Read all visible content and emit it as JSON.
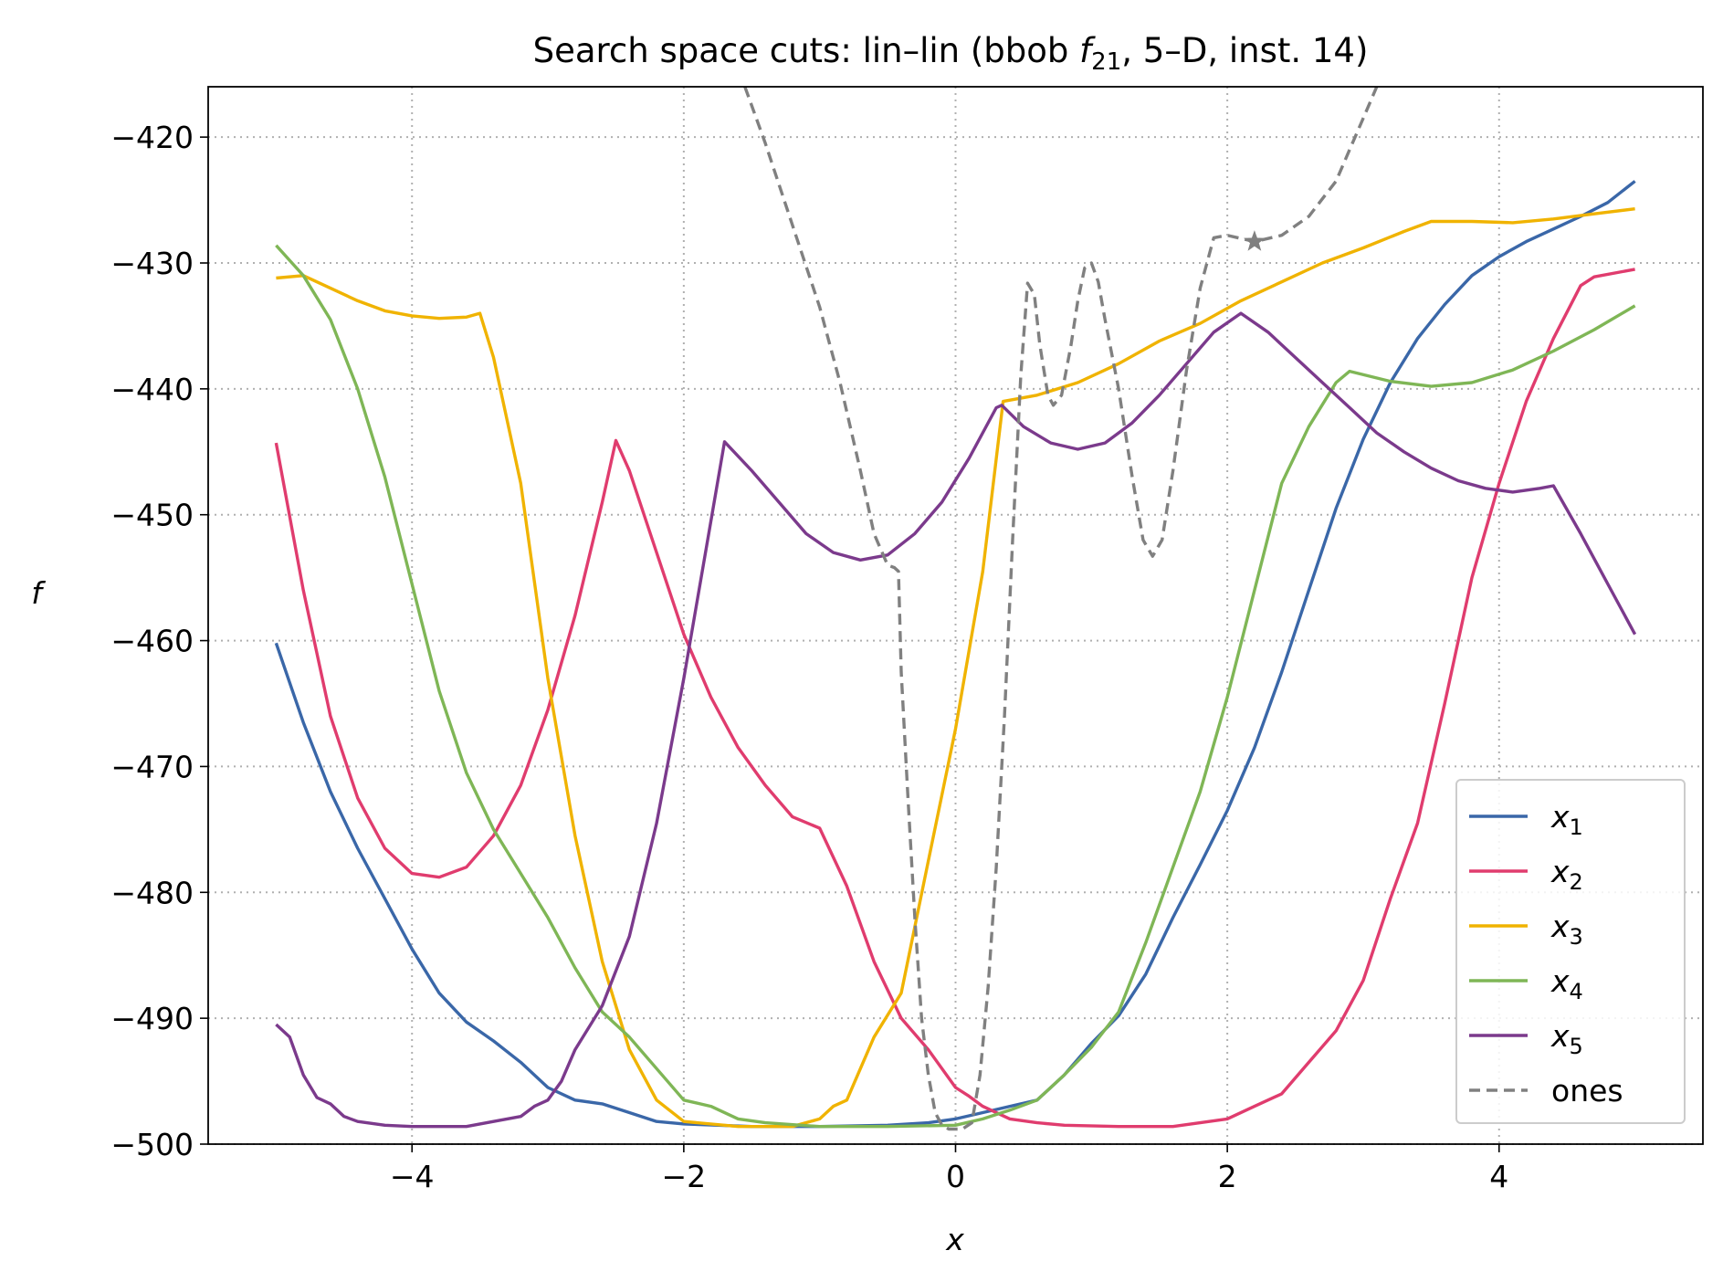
{
  "chart_data": {
    "type": "line",
    "title_prefix": "Search space cuts: lin–lin (bbob ",
    "title_func": "f",
    "title_func_sub": "21",
    "title_suffix": ", 5–D, inst. 14)",
    "xlabel": "x",
    "ylabel": "f",
    "xlim": [
      -5.5,
      5.5
    ],
    "ylim": [
      -500,
      -416
    ],
    "xticks": [
      -4,
      -2,
      0,
      2,
      4
    ],
    "xtick_labels": [
      "−4",
      "−2",
      "0",
      "2",
      "4"
    ],
    "yticks": [
      -420,
      -430,
      -440,
      -450,
      -460,
      -470,
      -480,
      -490,
      -500
    ],
    "ytick_labels": [
      "−420",
      "−430",
      "−440",
      "−450",
      "−460",
      "−470",
      "−480",
      "−490",
      "−500"
    ],
    "grid": true,
    "legend_position": "lower-right",
    "series": [
      {
        "name": "x",
        "sub": "1",
        "color": "#3a67a8",
        "dash": false,
        "points": [
          [
            -5,
            -460.2
          ],
          [
            -4.8,
            -466.5
          ],
          [
            -4.6,
            -472
          ],
          [
            -4.4,
            -476.5
          ],
          [
            -4.2,
            -480.5
          ],
          [
            -4,
            -484.5
          ],
          [
            -3.8,
            -488
          ],
          [
            -3.6,
            -490.3
          ],
          [
            -3.4,
            -491.8
          ],
          [
            -3.2,
            -493.5
          ],
          [
            -3.0,
            -495.5
          ],
          [
            -2.8,
            -496.5
          ],
          [
            -2.6,
            -496.8
          ],
          [
            -2.4,
            -497.5
          ],
          [
            -2.2,
            -498.2
          ],
          [
            -2.0,
            -498.4
          ],
          [
            -1.5,
            -498.6
          ],
          [
            -1.0,
            -498.6
          ],
          [
            -0.5,
            -498.5
          ],
          [
            -0.2,
            -498.3
          ],
          [
            0,
            -498.0
          ],
          [
            0.2,
            -497.5
          ],
          [
            0.4,
            -497.0
          ],
          [
            0.6,
            -496.5
          ],
          [
            0.8,
            -494.5
          ],
          [
            1.0,
            -492.0
          ],
          [
            1.2,
            -489.8
          ],
          [
            1.4,
            -486.5
          ],
          [
            1.6,
            -482.0
          ],
          [
            1.8,
            -477.8
          ],
          [
            2.0,
            -473.5
          ],
          [
            2.2,
            -468.5
          ],
          [
            2.4,
            -462.5
          ],
          [
            2.6,
            -456.0
          ],
          [
            2.8,
            -449.5
          ],
          [
            3.0,
            -444.0
          ],
          [
            3.2,
            -439.5
          ],
          [
            3.4,
            -436.0
          ],
          [
            3.6,
            -433.3
          ],
          [
            3.8,
            -431.0
          ],
          [
            4.0,
            -429.5
          ],
          [
            4.2,
            -428.3
          ],
          [
            4.4,
            -427.3
          ],
          [
            4.6,
            -426.3
          ],
          [
            4.8,
            -425.2
          ],
          [
            5.0,
            -423.5
          ]
        ]
      },
      {
        "name": "x",
        "sub": "2",
        "color": "#e03c6e",
        "dash": false,
        "points": [
          [
            -5,
            -444.3
          ],
          [
            -4.8,
            -456
          ],
          [
            -4.6,
            -466
          ],
          [
            -4.4,
            -472.5
          ],
          [
            -4.2,
            -476.5
          ],
          [
            -4.0,
            -478.5
          ],
          [
            -3.8,
            -478.8
          ],
          [
            -3.6,
            -478
          ],
          [
            -3.4,
            -475.5
          ],
          [
            -3.2,
            -471.5
          ],
          [
            -3.0,
            -465.5
          ],
          [
            -2.8,
            -458
          ],
          [
            -2.6,
            -449
          ],
          [
            -2.5,
            -444.1
          ],
          [
            -2.4,
            -446.5
          ],
          [
            -2.2,
            -453
          ],
          [
            -2.0,
            -459.5
          ],
          [
            -1.8,
            -464.5
          ],
          [
            -1.6,
            -468.5
          ],
          [
            -1.4,
            -471.5
          ],
          [
            -1.2,
            -474.0
          ],
          [
            -1.0,
            -474.9
          ],
          [
            -0.8,
            -479.5
          ],
          [
            -0.6,
            -485.5
          ],
          [
            -0.4,
            -490.0
          ],
          [
            -0.2,
            -492.5
          ],
          [
            0,
            -495.5
          ],
          [
            0.1,
            -496.2
          ],
          [
            0.2,
            -497.0
          ],
          [
            0.4,
            -498.0
          ],
          [
            0.6,
            -498.3
          ],
          [
            0.8,
            -498.5
          ],
          [
            1.2,
            -498.6
          ],
          [
            1.6,
            -498.6
          ],
          [
            1.8,
            -498.3
          ],
          [
            2.0,
            -498.0
          ],
          [
            2.2,
            -497.0
          ],
          [
            2.4,
            -496.0
          ],
          [
            2.6,
            -493.5
          ],
          [
            2.8,
            -491.0
          ],
          [
            3.0,
            -487.0
          ],
          [
            3.2,
            -480.5
          ],
          [
            3.4,
            -474.5
          ],
          [
            3.6,
            -465.0
          ],
          [
            3.8,
            -455.0
          ],
          [
            4.0,
            -447.5
          ],
          [
            4.2,
            -441.0
          ],
          [
            4.4,
            -436.0
          ],
          [
            4.6,
            -431.8
          ],
          [
            4.7,
            -431.1
          ],
          [
            5.0,
            -430.5
          ]
        ]
      },
      {
        "name": "x",
        "sub": "3",
        "color": "#f0b300",
        "dash": false,
        "points": [
          [
            -5,
            -431.2
          ],
          [
            -4.8,
            -431.0
          ],
          [
            -4.6,
            -432.0
          ],
          [
            -4.4,
            -433.0
          ],
          [
            -4.2,
            -433.8
          ],
          [
            -4.0,
            -434.2
          ],
          [
            -3.8,
            -434.4
          ],
          [
            -3.6,
            -434.3
          ],
          [
            -3.5,
            -434.0
          ],
          [
            -3.4,
            -437.5
          ],
          [
            -3.2,
            -447.5
          ],
          [
            -3.0,
            -463.0
          ],
          [
            -2.8,
            -475.5
          ],
          [
            -2.6,
            -485.5
          ],
          [
            -2.4,
            -492.5
          ],
          [
            -2.2,
            -496.5
          ],
          [
            -2.0,
            -498.2
          ],
          [
            -1.6,
            -498.6
          ],
          [
            -1.2,
            -498.6
          ],
          [
            -1.0,
            -498.0
          ],
          [
            -0.9,
            -497.0
          ],
          [
            -0.8,
            -496.5
          ],
          [
            -0.6,
            -491.5
          ],
          [
            -0.4,
            -488.0
          ],
          [
            -0.2,
            -477.5
          ],
          [
            0,
            -467.0
          ],
          [
            0.2,
            -454.5
          ],
          [
            0.35,
            -441.0
          ],
          [
            0.6,
            -440.5
          ],
          [
            0.9,
            -439.5
          ],
          [
            1.2,
            -438.0
          ],
          [
            1.5,
            -436.2
          ],
          [
            1.8,
            -434.8
          ],
          [
            2.1,
            -433.0
          ],
          [
            2.4,
            -431.5
          ],
          [
            2.7,
            -430.0
          ],
          [
            3.0,
            -428.8
          ],
          [
            3.3,
            -427.5
          ],
          [
            3.5,
            -426.7
          ],
          [
            3.8,
            -426.7
          ],
          [
            4.1,
            -426.8
          ],
          [
            4.4,
            -426.5
          ],
          [
            4.7,
            -426.1
          ],
          [
            5.0,
            -425.7
          ]
        ]
      },
      {
        "name": "x",
        "sub": "4",
        "color": "#7fb656",
        "dash": false,
        "points": [
          [
            -5,
            -428.6
          ],
          [
            -4.8,
            -431
          ],
          [
            -4.6,
            -434.5
          ],
          [
            -4.4,
            -440
          ],
          [
            -4.2,
            -447
          ],
          [
            -4.0,
            -455.5
          ],
          [
            -3.8,
            -464
          ],
          [
            -3.6,
            -470.5
          ],
          [
            -3.4,
            -475.0
          ],
          [
            -3.2,
            -478.5
          ],
          [
            -3.0,
            -482.0
          ],
          [
            -2.8,
            -486.0
          ],
          [
            -2.6,
            -489.5
          ],
          [
            -2.4,
            -491.5
          ],
          [
            -2.2,
            -494.0
          ],
          [
            -2.0,
            -496.5
          ],
          [
            -1.8,
            -497.0
          ],
          [
            -1.6,
            -498.0
          ],
          [
            -1.4,
            -498.3
          ],
          [
            -1.0,
            -498.6
          ],
          [
            -0.5,
            -498.6
          ],
          [
            0,
            -498.5
          ],
          [
            0.2,
            -498.0
          ],
          [
            0.4,
            -497.3
          ],
          [
            0.6,
            -496.5
          ],
          [
            0.8,
            -494.5
          ],
          [
            1.0,
            -492.3
          ],
          [
            1.2,
            -489.5
          ],
          [
            1.4,
            -484.0
          ],
          [
            1.6,
            -478.0
          ],
          [
            1.8,
            -472.0
          ],
          [
            2.0,
            -464.5
          ],
          [
            2.2,
            -456.0
          ],
          [
            2.4,
            -447.5
          ],
          [
            2.6,
            -443.0
          ],
          [
            2.8,
            -439.5
          ],
          [
            2.9,
            -438.6
          ],
          [
            3.2,
            -439.4
          ],
          [
            3.5,
            -439.8
          ],
          [
            3.8,
            -439.5
          ],
          [
            4.1,
            -438.5
          ],
          [
            4.4,
            -437.0
          ],
          [
            4.7,
            -435.3
          ],
          [
            5.0,
            -433.4
          ]
        ]
      },
      {
        "name": "x",
        "sub": "5",
        "color": "#7b3a8c",
        "dash": false,
        "points": [
          [
            -5,
            -490.5
          ],
          [
            -4.9,
            -491.5
          ],
          [
            -4.8,
            -494.5
          ],
          [
            -4.7,
            -496.3
          ],
          [
            -4.6,
            -496.8
          ],
          [
            -4.5,
            -497.8
          ],
          [
            -4.4,
            -498.2
          ],
          [
            -4.2,
            -498.5
          ],
          [
            -4.0,
            -498.6
          ],
          [
            -3.6,
            -498.6
          ],
          [
            -3.4,
            -498.2
          ],
          [
            -3.2,
            -497.8
          ],
          [
            -3.1,
            -497.0
          ],
          [
            -3.0,
            -496.5
          ],
          [
            -2.9,
            -495.0
          ],
          [
            -2.8,
            -492.5
          ],
          [
            -2.6,
            -489.0
          ],
          [
            -2.4,
            -483.5
          ],
          [
            -2.2,
            -474.5
          ],
          [
            -2.0,
            -463.0
          ],
          [
            -1.8,
            -450.5
          ],
          [
            -1.7,
            -444.2
          ],
          [
            -1.5,
            -446.5
          ],
          [
            -1.3,
            -449.0
          ],
          [
            -1.1,
            -451.5
          ],
          [
            -0.9,
            -453.0
          ],
          [
            -0.7,
            -453.6
          ],
          [
            -0.5,
            -453.2
          ],
          [
            -0.3,
            -451.5
          ],
          [
            -0.1,
            -449.0
          ],
          [
            0.1,
            -445.5
          ],
          [
            0.3,
            -441.5
          ],
          [
            0.34,
            -441.3
          ],
          [
            0.5,
            -443.0
          ],
          [
            0.7,
            -444.3
          ],
          [
            0.9,
            -444.8
          ],
          [
            1.1,
            -444.3
          ],
          [
            1.3,
            -442.7
          ],
          [
            1.5,
            -440.5
          ],
          [
            1.7,
            -438.0
          ],
          [
            1.9,
            -435.5
          ],
          [
            2.1,
            -434.0
          ],
          [
            2.3,
            -435.5
          ],
          [
            2.5,
            -437.5
          ],
          [
            2.7,
            -439.5
          ],
          [
            2.9,
            -441.5
          ],
          [
            3.1,
            -443.5
          ],
          [
            3.3,
            -445.0
          ],
          [
            3.5,
            -446.3
          ],
          [
            3.7,
            -447.3
          ],
          [
            3.9,
            -447.9
          ],
          [
            4.1,
            -448.2
          ],
          [
            4.3,
            -447.9
          ],
          [
            4.4,
            -447.7
          ],
          [
            4.6,
            -451.5
          ],
          [
            4.8,
            -455.5
          ],
          [
            5.0,
            -459.5
          ]
        ]
      },
      {
        "name": "ones",
        "color": "#808080",
        "dash": true,
        "points": [
          [
            -1.55,
            -416
          ],
          [
            -1.4,
            -420.5
          ],
          [
            -1.2,
            -427
          ],
          [
            -1.0,
            -433.5
          ],
          [
            -0.85,
            -439.5
          ],
          [
            -0.7,
            -446.5
          ],
          [
            -0.6,
            -451.5
          ],
          [
            -0.5,
            -454.0
          ],
          [
            -0.45,
            -454.2
          ],
          [
            -0.42,
            -454.5
          ],
          [
            -0.4,
            -462.5
          ],
          [
            -0.35,
            -472.5
          ],
          [
            -0.3,
            -482
          ],
          [
            -0.25,
            -490
          ],
          [
            -0.2,
            -494.5
          ],
          [
            -0.15,
            -497.5
          ],
          [
            -0.1,
            -498.5
          ],
          [
            -0.05,
            -498.8
          ],
          [
            0.05,
            -498.8
          ],
          [
            0.12,
            -498.3
          ],
          [
            0.18,
            -494.5
          ],
          [
            0.24,
            -487.5
          ],
          [
            0.3,
            -478
          ],
          [
            0.36,
            -466
          ],
          [
            0.42,
            -452
          ],
          [
            0.48,
            -439
          ],
          [
            0.53,
            -431.6
          ],
          [
            0.58,
            -432.5
          ],
          [
            0.62,
            -436.5
          ],
          [
            0.68,
            -440.5
          ],
          [
            0.72,
            -441.3
          ],
          [
            0.78,
            -440.5
          ],
          [
            0.85,
            -436.5
          ],
          [
            0.9,
            -433
          ],
          [
            0.95,
            -430.4
          ],
          [
            1.0,
            -430.0
          ],
          [
            1.05,
            -431.5
          ],
          [
            1.1,
            -434.5
          ],
          [
            1.2,
            -440.0
          ],
          [
            1.3,
            -447.0
          ],
          [
            1.38,
            -452.0
          ],
          [
            1.45,
            -453.3
          ],
          [
            1.52,
            -452.0
          ],
          [
            1.6,
            -446.5
          ],
          [
            1.7,
            -438.5
          ],
          [
            1.8,
            -432.0
          ],
          [
            1.9,
            -428.0
          ],
          [
            2.0,
            -427.8
          ],
          [
            2.2,
            -428.3
          ],
          [
            2.4,
            -427.8
          ],
          [
            2.6,
            -426.3
          ],
          [
            2.8,
            -423.5
          ],
          [
            2.9,
            -421.0
          ],
          [
            3.0,
            -418.5
          ],
          [
            3.1,
            -416.0
          ]
        ]
      }
    ],
    "marker": {
      "x": 2.2,
      "y": -428.3,
      "shape": "star",
      "color": "#808080"
    }
  }
}
